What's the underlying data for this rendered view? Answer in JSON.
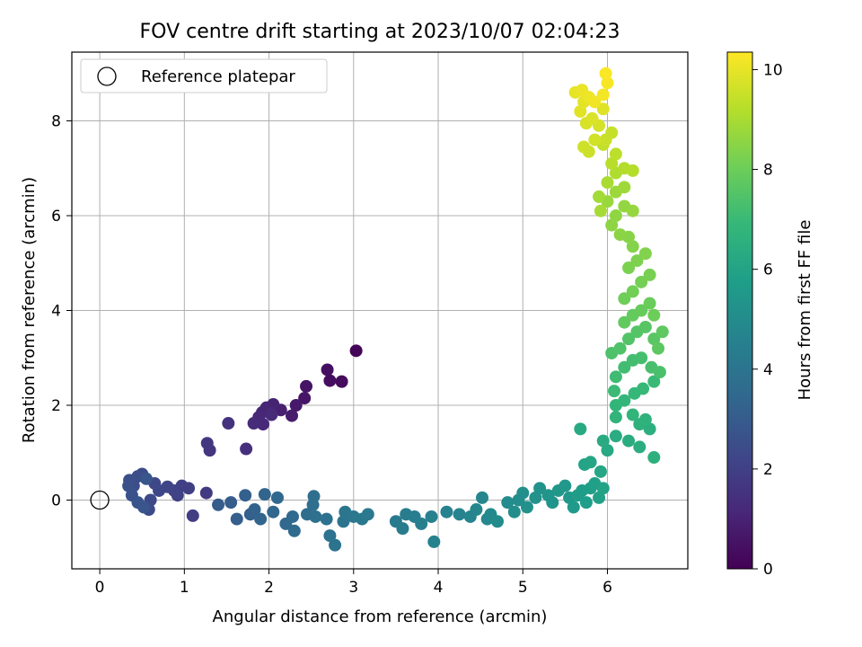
{
  "chart_data": {
    "type": "scatter",
    "title": "FOV centre drift starting at 2023/10/07 02:04:23",
    "xlabel": "Angular distance from reference (arcmin)",
    "ylabel": "Rotation from reference (arcmin)",
    "xlim": [
      -0.33,
      6.95
    ],
    "ylim": [
      -1.45,
      9.45
    ],
    "xticks": [
      0,
      1,
      2,
      3,
      4,
      5,
      6
    ],
    "yticks": [
      0,
      2,
      4,
      6,
      8
    ],
    "grid": true,
    "legend": {
      "placement": "top-left",
      "entries": [
        "Reference platepar"
      ]
    },
    "reference_point": {
      "x": 0,
      "y": 0
    },
    "colorbar": {
      "label": "Hours from first FF file",
      "range": [
        0,
        10.35
      ],
      "ticks": [
        0,
        2,
        4,
        6,
        8,
        10
      ],
      "colormap": "viridis"
    },
    "colormap_stops": [
      "#440154",
      "#482878",
      "#3e4989",
      "#31688e",
      "#26828e",
      "#1f9e89",
      "#35b779",
      "#6ece58",
      "#b5de2b",
      "#fde725"
    ],
    "series": [
      {
        "points": [
          [
            3.03,
            3.15,
            0.1
          ],
          [
            2.86,
            2.5,
            0.3
          ],
          [
            2.72,
            2.52,
            0.35
          ],
          [
            2.69,
            2.75,
            0.4
          ],
          [
            2.44,
            2.4,
            0.55
          ],
          [
            2.42,
            2.15,
            0.6
          ],
          [
            2.32,
            2.0,
            0.7
          ],
          [
            2.27,
            1.78,
            0.8
          ],
          [
            2.14,
            1.9,
            0.9
          ],
          [
            2.05,
            2.02,
            1.0
          ],
          [
            1.97,
            1.95,
            1.05
          ],
          [
            1.92,
            1.85,
            1.1
          ],
          [
            1.88,
            1.75,
            1.15
          ],
          [
            1.93,
            1.6,
            1.2
          ],
          [
            2.03,
            1.8,
            1.25
          ],
          [
            1.82,
            1.62,
            1.3
          ],
          [
            1.73,
            1.08,
            1.4
          ],
          [
            1.52,
            1.62,
            1.5
          ],
          [
            1.3,
            1.05,
            1.6
          ],
          [
            1.27,
            1.2,
            1.7
          ],
          [
            1.26,
            0.15,
            1.8
          ],
          [
            1.1,
            -0.33,
            1.9
          ],
          [
            1.05,
            0.25,
            1.95
          ],
          [
            0.97,
            0.3,
            2.0
          ],
          [
            0.92,
            0.1,
            2.05
          ],
          [
            0.88,
            0.2,
            2.1
          ],
          [
            0.8,
            0.28,
            2.15
          ],
          [
            0.7,
            0.2,
            2.2
          ],
          [
            0.65,
            0.35,
            2.25
          ],
          [
            0.6,
            0.0,
            2.3
          ],
          [
            0.58,
            -0.2,
            2.35
          ],
          [
            0.5,
            0.55,
            2.4
          ],
          [
            0.45,
            0.5,
            2.45
          ],
          [
            0.4,
            0.3,
            2.5
          ],
          [
            0.35,
            0.42,
            2.55
          ],
          [
            0.34,
            0.3,
            2.6
          ],
          [
            0.38,
            0.1,
            2.65
          ],
          [
            0.45,
            -0.05,
            2.7
          ],
          [
            0.52,
            -0.15,
            2.75
          ],
          [
            0.55,
            0.45,
            2.8
          ],
          [
            1.4,
            -0.1,
            3.0
          ],
          [
            1.55,
            -0.05,
            3.05
          ],
          [
            1.62,
            -0.4,
            3.1
          ],
          [
            1.72,
            0.1,
            3.15
          ],
          [
            1.78,
            -0.3,
            3.2
          ],
          [
            1.83,
            -0.2,
            3.25
          ],
          [
            1.9,
            -0.4,
            3.3
          ],
          [
            1.95,
            0.12,
            3.35
          ],
          [
            2.05,
            -0.25,
            3.4
          ],
          [
            2.1,
            0.05,
            3.45
          ],
          [
            2.2,
            -0.5,
            3.5
          ],
          [
            2.28,
            -0.35,
            3.55
          ],
          [
            2.3,
            -0.65,
            3.6
          ],
          [
            2.45,
            -0.3,
            3.65
          ],
          [
            2.52,
            -0.1,
            3.7
          ],
          [
            2.53,
            0.08,
            3.75
          ],
          [
            2.55,
            -0.35,
            3.8
          ],
          [
            2.68,
            -0.4,
            3.85
          ],
          [
            2.72,
            -0.75,
            3.9
          ],
          [
            2.78,
            -0.95,
            3.95
          ],
          [
            2.88,
            -0.45,
            4.0
          ],
          [
            2.9,
            -0.25,
            4.05
          ],
          [
            3.0,
            -0.35,
            4.1
          ],
          [
            3.1,
            -0.4,
            4.15
          ],
          [
            3.17,
            -0.3,
            4.2
          ],
          [
            3.5,
            -0.45,
            4.25
          ],
          [
            3.58,
            -0.6,
            4.3
          ],
          [
            3.62,
            -0.3,
            4.35
          ],
          [
            3.72,
            -0.35,
            4.4
          ],
          [
            3.8,
            -0.5,
            4.45
          ],
          [
            3.92,
            -0.35,
            4.5
          ],
          [
            3.95,
            -0.88,
            4.55
          ],
          [
            4.1,
            -0.25,
            4.6
          ],
          [
            4.25,
            -0.3,
            4.65
          ],
          [
            4.38,
            -0.35,
            4.7
          ],
          [
            4.45,
            -0.2,
            4.75
          ],
          [
            4.52,
            0.05,
            4.8
          ],
          [
            4.58,
            -0.4,
            4.85
          ],
          [
            4.62,
            -0.3,
            4.9
          ],
          [
            4.7,
            -0.45,
            4.95
          ],
          [
            4.82,
            -0.05,
            5.0
          ],
          [
            4.9,
            -0.25,
            5.05
          ],
          [
            4.95,
            0.0,
            5.1
          ],
          [
            5.0,
            0.15,
            5.15
          ],
          [
            5.05,
            -0.15,
            5.2
          ],
          [
            5.15,
            0.05,
            5.25
          ],
          [
            5.2,
            0.25,
            5.3
          ],
          [
            5.3,
            0.1,
            5.35
          ],
          [
            5.35,
            -0.05,
            5.4
          ],
          [
            5.42,
            0.2,
            5.45
          ],
          [
            5.5,
            0.3,
            5.5
          ],
          [
            5.55,
            0.05,
            5.55
          ],
          [
            5.6,
            -0.15,
            5.6
          ],
          [
            5.65,
            0.1,
            5.65
          ],
          [
            5.7,
            0.2,
            5.7
          ],
          [
            5.75,
            -0.05,
            5.75
          ],
          [
            5.8,
            0.25,
            5.8
          ],
          [
            5.85,
            0.35,
            5.85
          ],
          [
            5.9,
            0.05,
            5.9
          ],
          [
            5.95,
            0.25,
            5.95
          ],
          [
            5.73,
            0.75,
            6.0
          ],
          [
            5.8,
            0.8,
            6.05
          ],
          [
            5.92,
            0.6,
            6.1
          ],
          [
            6.0,
            1.05,
            6.2
          ],
          [
            5.68,
            1.5,
            6.25
          ],
          [
            5.95,
            1.25,
            6.3
          ],
          [
            6.1,
            1.35,
            6.35
          ],
          [
            6.25,
            1.25,
            6.4
          ],
          [
            6.38,
            1.12,
            6.45
          ],
          [
            6.5,
            1.5,
            6.5
          ],
          [
            6.55,
            0.9,
            6.55
          ],
          [
            6.38,
            1.6,
            6.6
          ],
          [
            6.45,
            1.7,
            6.65
          ],
          [
            6.1,
            1.75,
            6.7
          ],
          [
            6.3,
            1.8,
            6.75
          ],
          [
            6.1,
            2.0,
            6.8
          ],
          [
            6.2,
            2.1,
            6.85
          ],
          [
            6.32,
            2.25,
            6.9
          ],
          [
            6.42,
            2.35,
            6.95
          ],
          [
            6.55,
            2.5,
            7.0
          ],
          [
            6.08,
            2.3,
            7.05
          ],
          [
            6.1,
            2.6,
            7.1
          ],
          [
            6.2,
            2.8,
            7.15
          ],
          [
            6.3,
            2.95,
            7.2
          ],
          [
            6.4,
            3.0,
            7.25
          ],
          [
            6.52,
            2.8,
            7.3
          ],
          [
            6.62,
            2.7,
            7.35
          ],
          [
            6.05,
            3.1,
            7.4
          ],
          [
            6.15,
            3.2,
            7.45
          ],
          [
            6.25,
            3.4,
            7.5
          ],
          [
            6.35,
            3.55,
            7.55
          ],
          [
            6.45,
            3.65,
            7.6
          ],
          [
            6.55,
            3.4,
            7.65
          ],
          [
            6.6,
            3.2,
            7.7
          ],
          [
            6.65,
            3.55,
            7.75
          ],
          [
            6.2,
            3.75,
            7.8
          ],
          [
            6.3,
            3.9,
            7.85
          ],
          [
            6.4,
            4.0,
            7.9
          ],
          [
            6.5,
            4.15,
            7.95
          ],
          [
            6.55,
            3.9,
            8.0
          ],
          [
            6.2,
            4.25,
            8.05
          ],
          [
            6.3,
            4.4,
            8.1
          ],
          [
            6.4,
            4.6,
            8.15
          ],
          [
            6.5,
            4.75,
            8.2
          ],
          [
            6.25,
            4.9,
            8.25
          ],
          [
            6.35,
            5.05,
            8.3
          ],
          [
            6.45,
            5.2,
            8.35
          ],
          [
            6.3,
            5.35,
            8.4
          ],
          [
            6.25,
            5.55,
            8.45
          ],
          [
            6.15,
            5.6,
            8.5
          ],
          [
            6.05,
            5.8,
            8.55
          ],
          [
            6.1,
            6.0,
            8.6
          ],
          [
            6.2,
            6.2,
            8.65
          ],
          [
            6.3,
            6.1,
            8.7
          ],
          [
            6.0,
            6.3,
            8.75
          ],
          [
            6.1,
            6.5,
            8.8
          ],
          [
            6.2,
            6.6,
            8.85
          ],
          [
            5.9,
            6.4,
            8.9
          ],
          [
            5.92,
            6.1,
            8.95
          ],
          [
            6.0,
            6.7,
            9.0
          ],
          [
            6.1,
            6.9,
            9.1
          ],
          [
            6.2,
            7.0,
            9.15
          ],
          [
            6.3,
            6.95,
            9.2
          ],
          [
            6.05,
            7.1,
            9.25
          ],
          [
            6.1,
            7.3,
            9.3
          ],
          [
            5.95,
            7.5,
            9.4
          ],
          [
            6.05,
            7.75,
            9.45
          ],
          [
            5.98,
            7.6,
            9.5
          ],
          [
            5.78,
            7.35,
            9.55
          ],
          [
            5.72,
            7.45,
            9.6
          ],
          [
            5.85,
            7.6,
            9.65
          ],
          [
            5.9,
            7.9,
            9.7
          ],
          [
            5.75,
            7.95,
            9.75
          ],
          [
            5.82,
            8.05,
            9.8
          ],
          [
            5.95,
            8.25,
            9.85
          ],
          [
            5.68,
            8.2,
            9.9
          ],
          [
            5.72,
            8.4,
            9.95
          ],
          [
            5.62,
            8.6,
            10.0
          ],
          [
            5.7,
            8.65,
            10.05
          ],
          [
            5.78,
            8.5,
            10.1
          ],
          [
            5.85,
            8.4,
            10.15
          ],
          [
            5.95,
            8.55,
            10.2
          ],
          [
            6.0,
            8.8,
            10.25
          ],
          [
            5.98,
            9.0,
            10.3
          ]
        ]
      }
    ]
  }
}
